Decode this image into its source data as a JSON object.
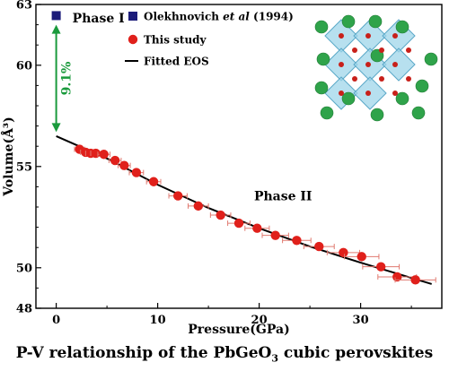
{
  "chart_data": {
    "type": "scatter",
    "title": "",
    "xlabel": "Pressure(GPa)",
    "ylabel": "Volume(Å³)",
    "xlim": [
      -2,
      38
    ],
    "ylim": [
      48,
      63
    ],
    "x_ticks": [
      0,
      10,
      20,
      30
    ],
    "y_ticks": [
      48,
      50,
      55,
      60,
      63
    ],
    "grid": false,
    "legend_position": "top-left",
    "series": [
      {
        "name": "Olekhnovich et al (1994)",
        "marker": "square",
        "color": "#1c1c7a",
        "points": [
          {
            "x": 0,
            "y": 62.45
          }
        ]
      },
      {
        "name": "This study",
        "marker": "circle",
        "color": "#e0201b",
        "points": [
          {
            "x": 2.3,
            "y": 55.85,
            "xerr": 0.5
          },
          {
            "x": 2.9,
            "y": 55.7,
            "xerr": 0.5
          },
          {
            "x": 3.4,
            "y": 55.65,
            "xerr": 0.5
          },
          {
            "x": 3.9,
            "y": 55.65,
            "xerr": 0.5
          },
          {
            "x": 4.7,
            "y": 55.6,
            "xerr": 0.6
          },
          {
            "x": 5.8,
            "y": 55.3,
            "xerr": 0.6
          },
          {
            "x": 6.7,
            "y": 55.05,
            "xerr": 0.6
          },
          {
            "x": 7.9,
            "y": 54.7,
            "xerr": 0.7
          },
          {
            "x": 9.6,
            "y": 54.25,
            "xerr": 0.7
          },
          {
            "x": 12.0,
            "y": 53.55,
            "xerr": 0.9
          },
          {
            "x": 14.0,
            "y": 53.05,
            "xerr": 1.0
          },
          {
            "x": 16.2,
            "y": 52.6,
            "xerr": 1.0
          },
          {
            "x": 18.0,
            "y": 52.2,
            "xerr": 1.1
          },
          {
            "x": 19.8,
            "y": 51.95,
            "xerr": 1.2
          },
          {
            "x": 21.6,
            "y": 51.6,
            "xerr": 1.3
          },
          {
            "x": 23.7,
            "y": 51.35,
            "xerr": 1.4
          },
          {
            "x": 25.9,
            "y": 51.05,
            "xerr": 1.5
          },
          {
            "x": 28.3,
            "y": 50.75,
            "xerr": 1.6
          },
          {
            "x": 30.1,
            "y": 50.55,
            "xerr": 1.7
          },
          {
            "x": 32.0,
            "y": 50.05,
            "xerr": 1.8
          },
          {
            "x": 33.6,
            "y": 49.55,
            "xerr": 1.9
          },
          {
            "x": 35.4,
            "y": 49.4,
            "xerr": 2.0
          }
        ]
      },
      {
        "name": "Fitted EOS",
        "type": "line",
        "color": "#000000",
        "points": [
          {
            "x": 0,
            "y": 56.5
          },
          {
            "x": 5,
            "y": 55.4
          },
          {
            "x": 10,
            "y": 54.1
          },
          {
            "x": 15,
            "y": 52.95
          },
          {
            "x": 20,
            "y": 51.95
          },
          {
            "x": 25,
            "y": 51.05
          },
          {
            "x": 30,
            "y": 50.25
          },
          {
            "x": 37,
            "y": 49.2
          }
        ]
      }
    ],
    "annotations": [
      {
        "text": "Phase  I"
      },
      {
        "text": "Phase  II"
      },
      {
        "text": "9.1%",
        "color": "#1a9a3c"
      }
    ],
    "caption_parts": {
      "before_sub": "P-V relationship of the PbGeO",
      "sub": "3",
      "after_sub": " cubic perovskites"
    }
  }
}
